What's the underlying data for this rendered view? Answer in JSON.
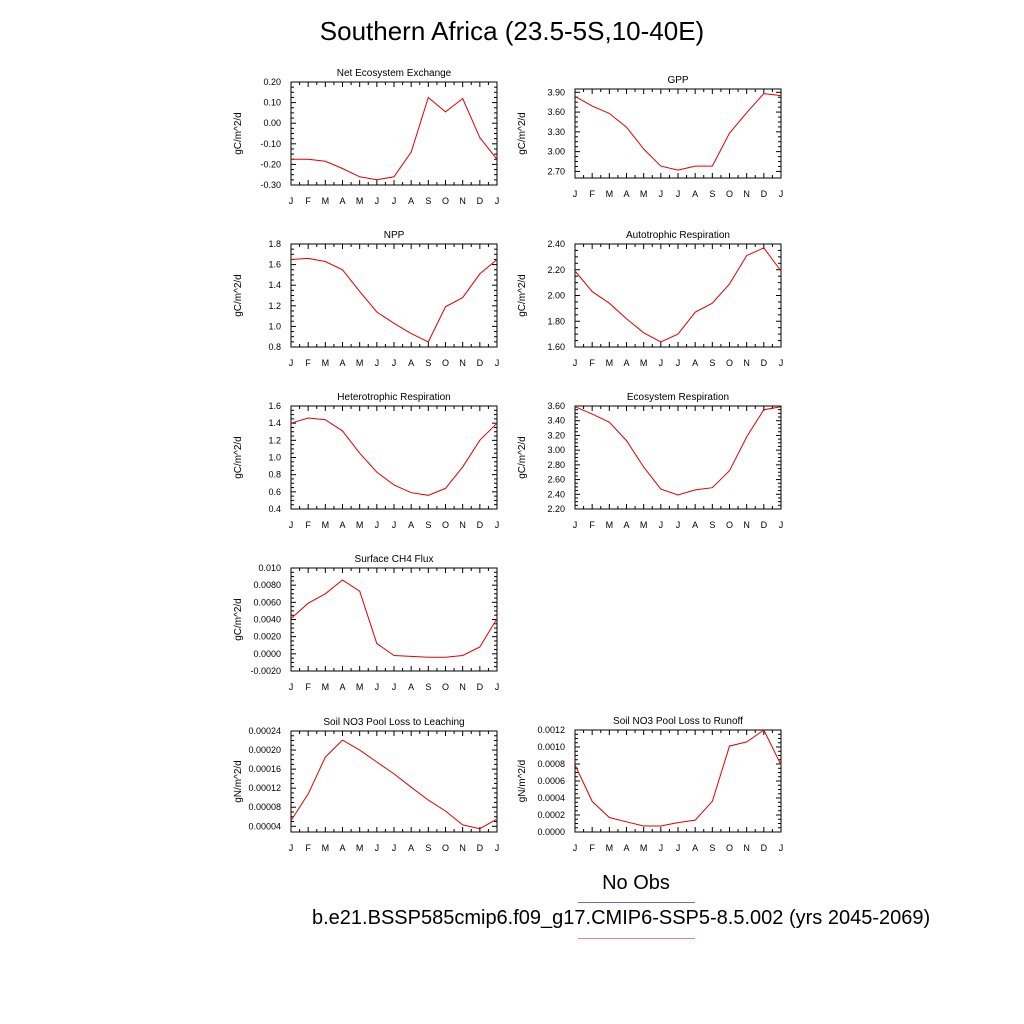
{
  "title": "Southern Africa (23.5-5S,10-40E)",
  "legend": {
    "obs_label": "No Obs",
    "case_label": "b.e21.BSSP585cmip6.f09_g17.CMIP6-SSP5-8.5.002 (yrs 2045-2069)",
    "obs_color": "#6a6ad8",
    "case_color": "#e88080"
  },
  "chart_data": [
    {
      "type": "line",
      "title": "Net Ecosystem Exchange",
      "ylabel": "gC/m^2/d",
      "categories": [
        "J",
        "F",
        "M",
        "A",
        "M",
        "J",
        "J",
        "A",
        "S",
        "O",
        "N",
        "D",
        "J"
      ],
      "ylim": [
        -0.3,
        0.2
      ],
      "yticks": [
        "-0.30",
        "-0.20",
        "-0.10",
        "0.00",
        "0.10",
        "0.20"
      ],
      "ytick_values": [
        -0.3,
        -0.2,
        -0.1,
        0.0,
        0.1,
        0.2
      ],
      "series": [
        {
          "color": "#e00000",
          "values": [
            -0.175,
            -0.175,
            -0.185,
            -0.22,
            -0.26,
            -0.275,
            -0.26,
            -0.14,
            0.125,
            0.055,
            0.12,
            -0.07,
            -0.175
          ]
        }
      ]
    },
    {
      "type": "line",
      "title": "GPP",
      "ylabel": "gC/m^2/d",
      "categories": [
        "J",
        "F",
        "M",
        "A",
        "M",
        "J",
        "J",
        "A",
        "S",
        "O",
        "N",
        "D",
        "J"
      ],
      "ylim": [
        2.6,
        3.95
      ],
      "yticks": [
        "2.70",
        "3.00",
        "3.30",
        "3.60",
        "3.90"
      ],
      "ytick_values": [
        2.7,
        3.0,
        3.3,
        3.6,
        3.9
      ],
      "series": [
        {
          "color": "#e00000",
          "values": [
            3.84,
            3.69,
            3.58,
            3.37,
            3.04,
            2.78,
            2.72,
            2.78,
            2.78,
            3.28,
            3.59,
            3.88,
            3.85
          ]
        }
      ]
    },
    {
      "type": "line",
      "title": "NPP",
      "ylabel": "gC/m^2/d",
      "categories": [
        "J",
        "F",
        "M",
        "A",
        "M",
        "J",
        "J",
        "A",
        "S",
        "O",
        "N",
        "D",
        "J"
      ],
      "ylim": [
        0.8,
        1.8
      ],
      "yticks": [
        "0.8",
        "1.0",
        "1.2",
        "1.4",
        "1.6",
        "1.8"
      ],
      "ytick_values": [
        0.8,
        1.0,
        1.2,
        1.4,
        1.6,
        1.8
      ],
      "series": [
        {
          "color": "#e00000",
          "values": [
            1.65,
            1.66,
            1.63,
            1.55,
            1.34,
            1.14,
            1.03,
            0.93,
            0.85,
            1.19,
            1.28,
            1.51,
            1.65
          ]
        }
      ]
    },
    {
      "type": "line",
      "title": "Autotrophic Respiration",
      "ylabel": "gC/m^2/d",
      "categories": [
        "J",
        "F",
        "M",
        "A",
        "M",
        "J",
        "J",
        "A",
        "S",
        "O",
        "N",
        "D",
        "J"
      ],
      "ylim": [
        1.6,
        2.4
      ],
      "yticks": [
        "1.60",
        "1.80",
        "2.00",
        "2.20",
        "2.40"
      ],
      "ytick_values": [
        1.6,
        1.8,
        2.0,
        2.2,
        2.4
      ],
      "series": [
        {
          "color": "#e00000",
          "values": [
            2.19,
            2.03,
            1.94,
            1.82,
            1.71,
            1.64,
            1.7,
            1.87,
            1.94,
            2.09,
            2.31,
            2.37,
            2.19
          ]
        }
      ]
    },
    {
      "type": "line",
      "title": "Heterotrophic Respiration",
      "ylabel": "gC/m^2/d",
      "categories": [
        "J",
        "F",
        "M",
        "A",
        "M",
        "J",
        "J",
        "A",
        "S",
        "O",
        "N",
        "D",
        "J"
      ],
      "ylim": [
        0.4,
        1.6
      ],
      "yticks": [
        "0.4",
        "0.6",
        "0.8",
        "1.0",
        "1.2",
        "1.4",
        "1.6"
      ],
      "ytick_values": [
        0.4,
        0.6,
        0.8,
        1.0,
        1.2,
        1.4,
        1.6
      ],
      "series": [
        {
          "color": "#e00000",
          "values": [
            1.4,
            1.46,
            1.44,
            1.31,
            1.05,
            0.83,
            0.68,
            0.59,
            0.56,
            0.64,
            0.89,
            1.2,
            1.4
          ]
        }
      ]
    },
    {
      "type": "line",
      "title": "Ecosystem Respiration",
      "ylabel": "gC/m^2/d",
      "categories": [
        "J",
        "F",
        "M",
        "A",
        "M",
        "J",
        "J",
        "A",
        "S",
        "O",
        "N",
        "D",
        "J"
      ],
      "ylim": [
        2.2,
        3.6
      ],
      "yticks": [
        "2.20",
        "2.40",
        "2.60",
        "2.80",
        "3.00",
        "3.20",
        "3.40",
        "3.60"
      ],
      "ytick_values": [
        2.2,
        2.4,
        2.6,
        2.8,
        3.0,
        3.2,
        3.4,
        3.6
      ],
      "series": [
        {
          "color": "#e00000",
          "values": [
            3.59,
            3.49,
            3.38,
            3.13,
            2.77,
            2.47,
            2.39,
            2.46,
            2.49,
            2.72,
            3.18,
            3.55,
            3.59
          ]
        }
      ]
    },
    {
      "type": "line",
      "title": "Surface CH4 Flux",
      "ylabel": "gC/m^2/d",
      "categories": [
        "J",
        "F",
        "M",
        "A",
        "M",
        "J",
        "J",
        "A",
        "S",
        "O",
        "N",
        "D",
        "J"
      ],
      "ylim": [
        -0.002,
        0.01
      ],
      "yticks": [
        "-0.0020",
        "0.0000",
        "0.0020",
        "0.0040",
        "0.0060",
        "0.0080",
        "0.010"
      ],
      "ytick_values": [
        -0.002,
        0.0,
        0.002,
        0.004,
        0.006,
        0.008,
        0.01
      ],
      "series": [
        {
          "color": "#e00000",
          "values": [
            0.0041,
            0.0059,
            0.007,
            0.0086,
            0.0073,
            0.0012,
            -0.0002,
            -0.0003,
            -0.0004,
            -0.0004,
            -0.0002,
            0.0008,
            0.0041
          ]
        }
      ]
    },
    {
      "type": "line",
      "title": "Soil NO3 Pool Loss to Leaching",
      "ylabel": "gN/m^2/d",
      "categories": [
        "J",
        "F",
        "M",
        "A",
        "M",
        "J",
        "J",
        "A",
        "S",
        "O",
        "N",
        "D",
        "J"
      ],
      "ylim": [
        2.8e-05,
        0.00024
      ],
      "yticks": [
        "0.00004",
        "0.00008",
        "0.00012",
        "0.00016",
        "0.00020",
        "0.00024"
      ],
      "ytick_values": [
        4e-05,
        8e-05,
        0.00012,
        0.00016,
        0.0002,
        0.00024
      ],
      "series": [
        {
          "color": "#e00000",
          "values": [
            5.2e-05,
            0.000108,
            0.000185,
            0.000221,
            0.0002,
            0.000175,
            0.00015,
            0.000122,
            9.5e-05,
            7.2e-05,
            4.3e-05,
            3.5e-05,
            5.5e-05
          ]
        }
      ]
    },
    {
      "type": "line",
      "title": "Soil NO3 Pool Loss to Runoff",
      "ylabel": "gN/m^2/d",
      "categories": [
        "J",
        "F",
        "M",
        "A",
        "M",
        "J",
        "J",
        "A",
        "S",
        "O",
        "N",
        "D",
        "J"
      ],
      "ylim": [
        0.0,
        0.0012
      ],
      "yticks": [
        "0.0000",
        "0.0002",
        "0.0004",
        "0.0006",
        "0.0008",
        "0.0010",
        "0.0012"
      ],
      "ytick_values": [
        0.0,
        0.0002,
        0.0004,
        0.0006,
        0.0008,
        0.001,
        0.0012
      ],
      "series": [
        {
          "color": "#e00000",
          "values": [
            0.00079,
            0.00036,
            0.00017,
            0.00012,
            7e-05,
            7e-05,
            0.00011,
            0.00014,
            0.00036,
            0.00101,
            0.00106,
            0.0012,
            0.00079
          ]
        }
      ]
    }
  ]
}
